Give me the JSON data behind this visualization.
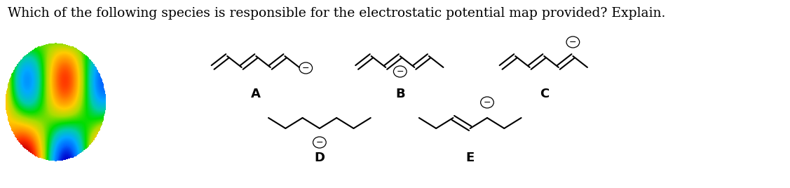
{
  "title": "Which of the following species is responsible for the electrostatic potential map provided? Explain.",
  "title_color": "#000000",
  "title_fontsize": 13.5,
  "background_color": "#ffffff",
  "label_A": "A",
  "label_B": "B",
  "label_C": "C",
  "label_D": "D",
  "label_E": "E",
  "label_fontsize": 13,
  "label_bold": true,
  "minus_fontsize": 9,
  "line_color": "#000000",
  "line_width": 1.5
}
